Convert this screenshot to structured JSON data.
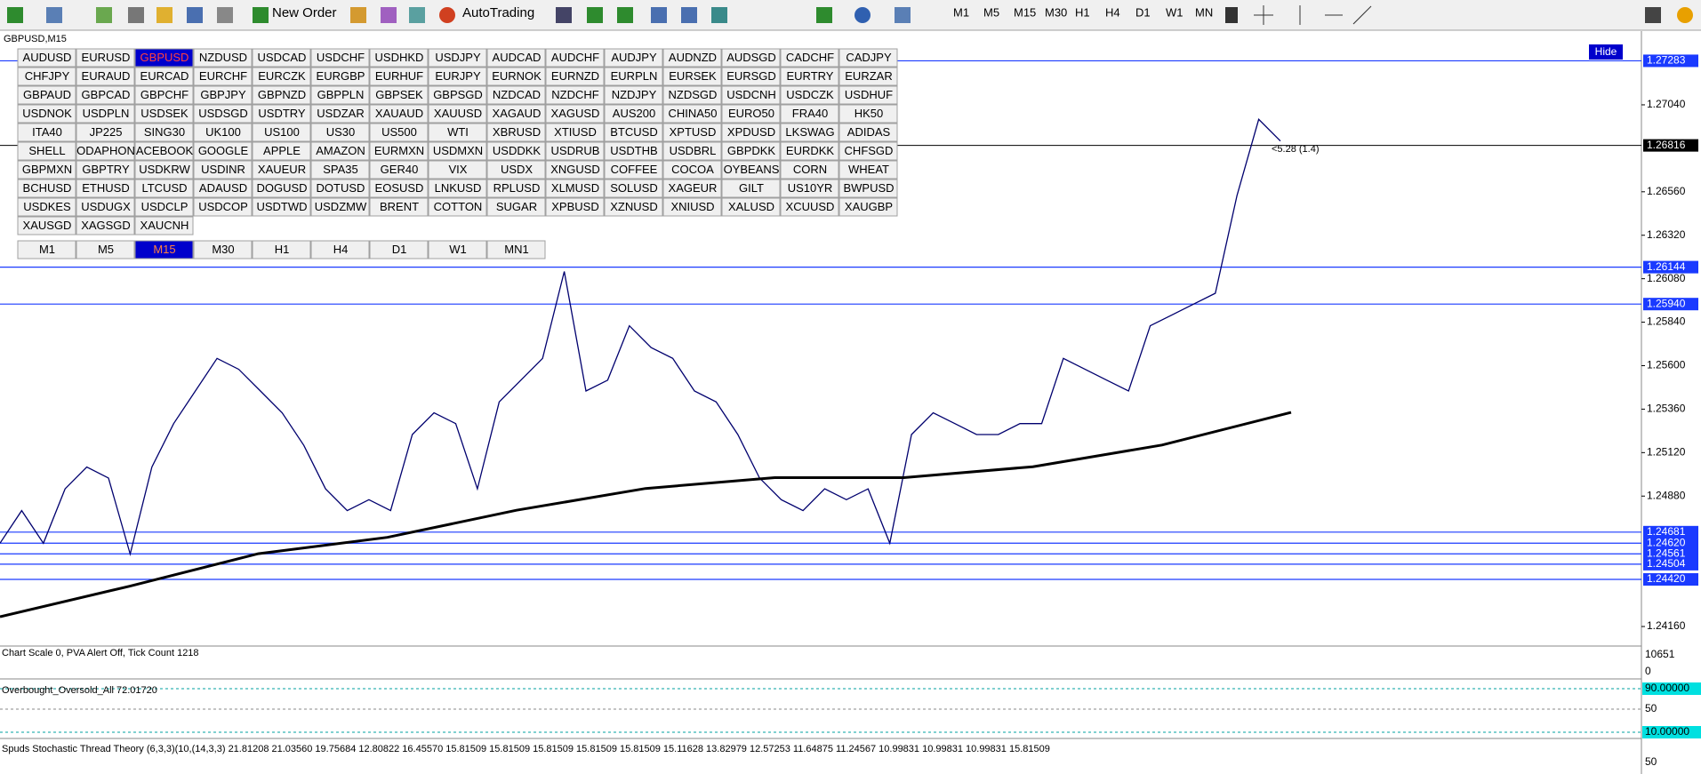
{
  "toolbar": {
    "new_order": "New Order",
    "autotrading": "AutoTrading",
    "timeframes": [
      "M1",
      "M5",
      "M15",
      "M30",
      "H1",
      "H4",
      "D1",
      "W1",
      "MN"
    ]
  },
  "chart_title": "GBPUSD,M15",
  "hide_button": "Hide",
  "symbol_grid": {
    "rows": [
      [
        "AUDUSD",
        "EURUSD",
        "GBPUSD",
        "NZDUSD",
        "USDCAD",
        "USDCHF",
        "USDHKD",
        "USDJPY",
        "AUDCAD",
        "AUDCHF",
        "AUDJPY",
        "AUDNZD",
        "AUDSGD",
        "CADCHF",
        "CADJPY"
      ],
      [
        "CHFJPY",
        "EURAUD",
        "EURCAD",
        "EURCHF",
        "EURCZK",
        "EURGBP",
        "EURHUF",
        "EURJPY",
        "EURNOK",
        "EURNZD",
        "EURPLN",
        "EURSEK",
        "EURSGD",
        "EURTRY",
        "EURZAR"
      ],
      [
        "GBPAUD",
        "GBPCAD",
        "GBPCHF",
        "GBPJPY",
        "GBPNZD",
        "GBPPLN",
        "GBPSEK",
        "GBPSGD",
        "NZDCAD",
        "NZDCHF",
        "NZDJPY",
        "NZDSGD",
        "USDCNH",
        "USDCZK",
        "USDHUF"
      ],
      [
        "USDNOK",
        "USDPLN",
        "USDSEK",
        "USDSGD",
        "USDTRY",
        "USDZAR",
        "XAUAUD",
        "XAUUSD",
        "XAGAUD",
        "XAGUSD",
        "AUS200",
        "CHINA50",
        "EURO50",
        "FRA40",
        "HK50"
      ],
      [
        "ITA40",
        "JP225",
        "SING30",
        "UK100",
        "US100",
        "US30",
        "US500",
        "WTI",
        "XBRUSD",
        "XTIUSD",
        "BTCUSD",
        "XPTUSD",
        "XPDUSD",
        "LKSWAG",
        "ADIDAS"
      ],
      [
        "SHELL",
        "ODAPHON",
        "ACEBOOK",
        "GOOGLE",
        "APPLE",
        "AMAZON",
        "EURMXN",
        "USDMXN",
        "USDDKK",
        "USDRUB",
        "USDTHB",
        "USDBRL",
        "GBPDKK",
        "EURDKK",
        "CHFSGD"
      ],
      [
        "GBPMXN",
        "GBPTRY",
        "USDKRW",
        "USDINR",
        "XAUEUR",
        "SPA35",
        "GER40",
        "VIX",
        "USDX",
        "XNGUSD",
        "COFFEE",
        "COCOA",
        "OYBEANS",
        "CORN",
        "WHEAT"
      ],
      [
        "BCHUSD",
        "ETHUSD",
        "LTCUSD",
        "ADAUSD",
        "DOGUSD",
        "DOTUSD",
        "EOSUSD",
        "LNKUSD",
        "RPLUSD",
        "XLMUSD",
        "SOLUSD",
        "XAGEUR",
        "GILT",
        "US10YR",
        "BWPUSD"
      ],
      [
        "USDKES",
        "USDUGX",
        "USDCLP",
        "USDCOP",
        "USDTWD",
        "USDZMW",
        "BRENT",
        "COTTON",
        "SUGAR",
        "XPBUSD",
        "XZNUSD",
        "XNIUSD",
        "XALUSD",
        "XCUUSD",
        "XAUGBP"
      ],
      [
        "XAUSGD",
        "XAGSGD",
        "XAUCNH"
      ]
    ]
  },
  "timeframe_buttons": [
    "M1",
    "M5",
    "M15",
    "M30",
    "H1",
    "H4",
    "D1",
    "W1",
    "MN1"
  ],
  "price_chart": {
    "type": "line",
    "ylim": [
      1.24062,
      1.27447
    ],
    "yticks": [
      {
        "value": 1.2704,
        "label": "1.27040"
      },
      {
        "value": 1.2656,
        "label": "1.26560"
      },
      {
        "value": 1.2632,
        "label": "1.26320"
      },
      {
        "value": 1.2608,
        "label": "1.26080"
      },
      {
        "value": 1.2584,
        "label": "1.25840"
      },
      {
        "value": 1.256,
        "label": "1.25600"
      },
      {
        "value": 1.2536,
        "label": "1.25360"
      },
      {
        "value": 1.2512,
        "label": "1.25120"
      },
      {
        "value": 1.2488,
        "label": "1.24880"
      },
      {
        "value": 1.2416,
        "label": "1.24160"
      }
    ],
    "levels": [
      {
        "value": 1.27283,
        "label": "1.27283"
      },
      {
        "value": 1.26144,
        "label": "1.26144"
      },
      {
        "value": 1.2594,
        "label": "1.25940"
      },
      {
        "value": 1.24681,
        "label": "1.24681"
      },
      {
        "value": 1.2462,
        "label": "1.24620"
      },
      {
        "value": 1.24561,
        "label": "1.24561"
      },
      {
        "value": 1.24504,
        "label": "1.24504"
      },
      {
        "value": 1.2442,
        "label": "1.24420"
      }
    ],
    "current_price": {
      "value": 1.26816,
      "label": "1.26816"
    },
    "series": [
      {
        "color": "#00006e",
        "values": [
          1.2462,
          1.248,
          1.2462,
          1.2492,
          1.2504,
          1.2498,
          1.2456,
          1.2504,
          1.2528,
          1.2546,
          1.2564,
          1.2558,
          1.2546,
          1.2534,
          1.2516,
          1.2492,
          1.248,
          1.2486,
          1.248,
          1.2522,
          1.2534,
          1.2528,
          1.2492,
          1.254,
          1.2552,
          1.2564,
          1.2612,
          1.2546,
          1.2552,
          1.2582,
          1.257,
          1.2564,
          1.2546,
          1.254,
          1.2522,
          1.2498,
          1.2486,
          1.248,
          1.2492,
          1.2486,
          1.2492,
          1.2462,
          1.2522,
          1.2534,
          1.2528,
          1.2522,
          1.2522,
          1.2528,
          1.2528,
          1.2564,
          1.2558,
          1.2552,
          1.2546,
          1.2582,
          1.2588,
          1.2594,
          1.26,
          1.2654,
          1.2696,
          1.2684
        ]
      },
      {
        "color": "#000000",
        "values": [
          1.24214,
          1.24382,
          1.24562,
          1.24652,
          1.24802,
          1.24922,
          1.24982,
          1.24982,
          1.25042,
          1.25162,
          1.25342
        ]
      }
    ],
    "annotation": "<5.28 (1.4)"
  },
  "info_line": "Chart Scale 0,  PVA Alert Off,  Tick Count 1218",
  "volume_panel": {
    "labels": [
      "10651",
      "0"
    ]
  },
  "oscillator_panel": {
    "title": "Overbought_Oversold_All 72.01720",
    "labels": [
      "90.00000",
      "50",
      "10.00000"
    ]
  },
  "stochastic_panel": {
    "title": "Spuds Stochastic Thread Theory (6,3,3)(10,(14,3,3) 21.81208 21.03560 19.75684 12.80822 16.45570 15.81509 15.81509 15.81509 15.81509 15.81509 15.11628 13.82979 12.57253 11.64875 11.24567 10.99831 10.99831 10.99831 15.81509",
    "labels": [
      "50"
    ]
  }
}
